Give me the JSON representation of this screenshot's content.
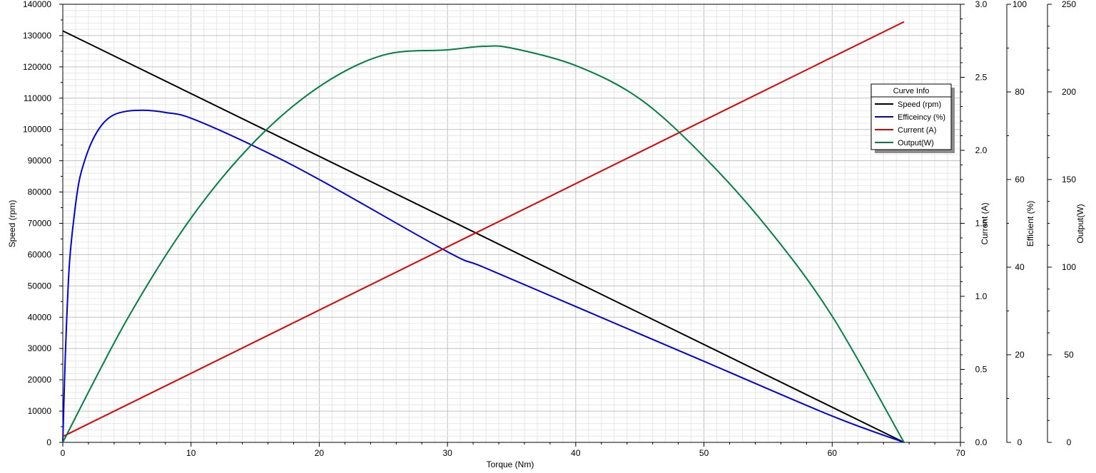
{
  "chart_data": {
    "type": "line",
    "x_axis": {
      "label": "Torque (Nm)",
      "range": [
        0,
        70
      ],
      "ticks": [
        0,
        10,
        20,
        30,
        40,
        50,
        60,
        70
      ]
    },
    "y_axes": [
      {
        "id": "speed",
        "label": "Speed (rpm)",
        "range": [
          0,
          140000
        ],
        "ticks": [
          0,
          10000,
          20000,
          30000,
          40000,
          50000,
          60000,
          70000,
          80000,
          90000,
          100000,
          110000,
          120000,
          130000,
          140000
        ]
      },
      {
        "id": "current",
        "label": "Current (A)",
        "range": [
          0,
          3.0
        ],
        "ticks": [
          "0.0",
          "0.5",
          "1.0",
          "1.5",
          "2.0",
          "2.5",
          "3.0"
        ]
      },
      {
        "id": "efficiency",
        "label": "Efficient (%)",
        "range": [
          0,
          100
        ],
        "ticks": [
          0,
          20,
          40,
          60,
          80,
          100
        ]
      },
      {
        "id": "output",
        "label": "Output(W)",
        "range": [
          0,
          250
        ],
        "ticks": [
          0,
          50,
          100,
          150,
          200,
          250
        ]
      }
    ],
    "legend": {
      "title": "Curve Info",
      "placement": "right",
      "entries": [
        "Speed (rpm)",
        "Efficeincy (%)",
        "Current (A)",
        "Output(W)"
      ]
    },
    "grid": true,
    "series": [
      {
        "name": "Speed (rpm)",
        "axis": "speed",
        "color": "#000000",
        "points": [
          [
            0,
            131500
          ],
          [
            65.6,
            0
          ]
        ]
      },
      {
        "name": "Efficeincy (%)",
        "axis": "efficiency",
        "color": "#0000e0",
        "points": [
          [
            0,
            0
          ],
          [
            0.2,
            20
          ],
          [
            0.5,
            40
          ],
          [
            0.9,
            52
          ],
          [
            1.3,
            60
          ],
          [
            1.9,
            66
          ],
          [
            2.5,
            70
          ],
          [
            3.2,
            73
          ],
          [
            4,
            74.8
          ],
          [
            5,
            75.6
          ],
          [
            6,
            75.8
          ],
          [
            7,
            75.7
          ],
          [
            8,
            75.3
          ],
          [
            10,
            74
          ],
          [
            15,
            67.5
          ],
          [
            20,
            60
          ],
          [
            30,
            43.5
          ],
          [
            32.8,
            40
          ],
          [
            40,
            31
          ],
          [
            50,
            18.5
          ],
          [
            60,
            6
          ],
          [
            65.6,
            0
          ]
        ]
      },
      {
        "name": "Current (A)",
        "axis": "current",
        "color": "#e00000",
        "points": [
          [
            0,
            0.04
          ],
          [
            65.6,
            2.88
          ]
        ]
      },
      {
        "name": "Output(W)",
        "axis": "output",
        "color": "#008040",
        "points": [
          [
            0,
            0
          ],
          [
            5,
            70
          ],
          [
            10,
            128
          ],
          [
            15,
            172
          ],
          [
            20,
            203
          ],
          [
            25,
            221
          ],
          [
            30,
            224
          ],
          [
            32.8,
            226
          ],
          [
            35,
            225
          ],
          [
            40,
            215
          ],
          [
            45,
            196
          ],
          [
            50,
            163
          ],
          [
            55,
            122
          ],
          [
            60,
            72
          ],
          [
            65.6,
            0
          ]
        ]
      }
    ]
  }
}
